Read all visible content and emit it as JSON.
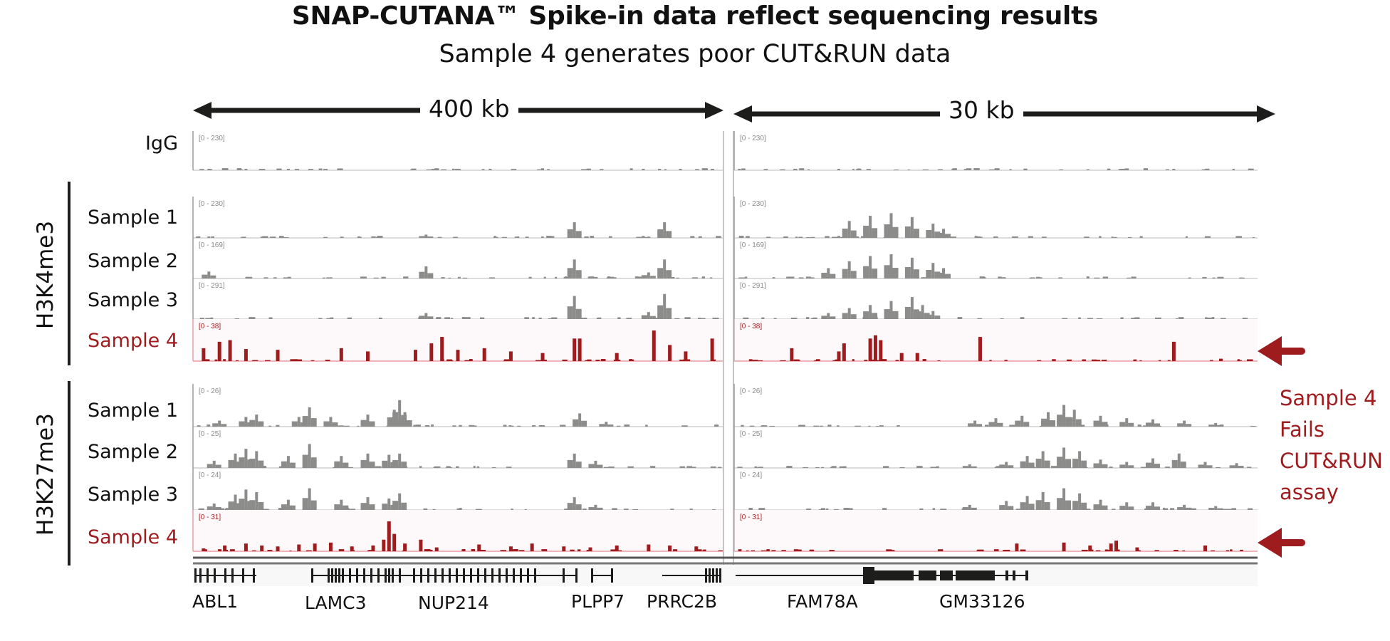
{
  "title": "SNAP-CUTANA™ Spike-in data reflect sequencing results",
  "subtitle": "Sample 4 generates poor CUT&RUN data",
  "colors": {
    "signal_gray": "#8c8c8a",
    "signal_red": "#9e1b1e",
    "text_dark": "#111111",
    "highlight_bg": "#fdf8f9"
  },
  "annotation": {
    "lines": [
      "Sample 4",
      "Fails",
      "CUT&RUN",
      "assay"
    ]
  },
  "chart_data": {
    "type": "bar",
    "title": "SNAP-CUTANA™ Spike-in data reflect sequencing results",
    "subtitle": "Sample 4 generates poor CUT&RUN data",
    "panels": [
      {
        "name": "left",
        "scale_label": "400 kb",
        "genes": [
          "ABL1",
          "LAMC3",
          "NUP214",
          "PLPP7",
          "PRRC2B"
        ]
      },
      {
        "name": "right",
        "scale_label": "30 kb",
        "genes": [
          "FAM78A",
          "GM33126"
        ]
      }
    ],
    "tracks": [
      {
        "group": "",
        "label": "IgG",
        "highlight": false,
        "ranges": [
          "[0 - 230]",
          "[0 - 230]"
        ],
        "max": 230,
        "peaks": [
          [
            [
              0.03,
              3
            ],
            [
              0.1,
              3
            ],
            [
              0.18,
              3
            ],
            [
              0.5,
              3
            ],
            [
              0.85,
              4
            ],
            [
              0.92,
              6
            ],
            [
              0.98,
              8
            ]
          ],
          [
            [
              0.01,
              4
            ],
            [
              0.2,
              4
            ],
            [
              0.84,
              5
            ]
          ]
        ]
      },
      {
        "group": "H3K4me3",
        "label": "Sample 1",
        "highlight": false,
        "ranges": [
          "[0 - 230]",
          "[0 - 230]"
        ],
        "max": 230,
        "peaks": [
          [
            [
              0.03,
              8
            ],
            [
              0.44,
              25
            ],
            [
              0.72,
              120
            ],
            [
              0.85,
              15
            ],
            [
              0.89,
              120
            ]
          ],
          [
            [
              0.1,
              10
            ],
            [
              0.2,
              15
            ],
            [
              0.22,
              130
            ],
            [
              0.26,
              170
            ],
            [
              0.3,
              190
            ],
            [
              0.34,
              160
            ],
            [
              0.38,
              110
            ],
            [
              0.4,
              70
            ]
          ]
        ]
      },
      {
        "group": "H3K4me3",
        "label": "Sample 2",
        "highlight": false,
        "ranges": [
          "[0 - 169]",
          "[0 - 169]"
        ],
        "max": 169,
        "peaks": [
          [
            [
              0.03,
              40
            ],
            [
              0.44,
              70
            ],
            [
              0.72,
              110
            ],
            [
              0.86,
              35
            ],
            [
              0.89,
              110
            ]
          ],
          [
            [
              0.18,
              60
            ],
            [
              0.22,
              100
            ],
            [
              0.26,
              130
            ],
            [
              0.3,
              140
            ],
            [
              0.34,
              120
            ],
            [
              0.38,
              90
            ],
            [
              0.4,
              60
            ]
          ]
        ]
      },
      {
        "group": "H3K4me3",
        "label": "Sample 3",
        "highlight": false,
        "ranges": [
          "[0 - 291]",
          "[0 - 291]"
        ],
        "max": 291,
        "peaks": [
          [
            [
              0.44,
              60
            ],
            [
              0.72,
              230
            ],
            [
              0.86,
              70
            ],
            [
              0.89,
              250
            ]
          ],
          [
            [
              0.18,
              60
            ],
            [
              0.22,
              110
            ],
            [
              0.26,
              140
            ],
            [
              0.3,
              180
            ],
            [
              0.34,
              220
            ],
            [
              0.36,
              140
            ],
            [
              0.38,
              80
            ]
          ]
        ]
      },
      {
        "group": "H3K4me3",
        "label": "Sample 4",
        "highlight": true,
        "ranges": [
          "[0 - 38]",
          "[0 - 38]"
        ],
        "max": 38,
        "peaks": [
          [
            [
              0.02,
              16
            ],
            [
              0.05,
              24
            ],
            [
              0.07,
              26
            ],
            [
              0.1,
              15
            ],
            [
              0.16,
              14
            ],
            [
              0.28,
              16
            ],
            [
              0.33,
              12
            ],
            [
              0.42,
              14
            ],
            [
              0.45,
              22
            ],
            [
              0.47,
              30
            ],
            [
              0.5,
              14
            ],
            [
              0.55,
              16
            ],
            [
              0.6,
              12
            ],
            [
              0.66,
              10
            ],
            [
              0.72,
              28
            ],
            [
              0.73,
              28
            ],
            [
              0.8,
              10
            ],
            [
              0.87,
              38
            ],
            [
              0.9,
              20
            ],
            [
              0.93,
              12
            ],
            [
              0.98,
              28
            ]
          ],
          [
            [
              0.11,
              16
            ],
            [
              0.2,
              12
            ],
            [
              0.21,
              22
            ],
            [
              0.26,
              28
            ],
            [
              0.27,
              32
            ],
            [
              0.28,
              26
            ],
            [
              0.32,
              10
            ],
            [
              0.35,
              10
            ],
            [
              0.47,
              30
            ],
            [
              0.84,
              24
            ],
            [
              0.93,
              3
            ]
          ]
        ]
      },
      {
        "group": "H3K27me3",
        "label": "Sample 1",
        "highlight": false,
        "ranges": [
          "[0 - 26]",
          "[0 - 26]"
        ],
        "max": 26,
        "peaks": [
          [
            [
              0.05,
              5
            ],
            [
              0.1,
              8
            ],
            [
              0.12,
              10
            ],
            [
              0.2,
              8
            ],
            [
              0.22,
              16
            ],
            [
              0.26,
              8
            ],
            [
              0.33,
              10
            ],
            [
              0.38,
              14
            ],
            [
              0.39,
              22
            ],
            [
              0.4,
              12
            ],
            [
              0.73,
              11
            ],
            [
              0.78,
              4
            ]
          ],
          [
            [
              0.46,
              5
            ],
            [
              0.5,
              7
            ],
            [
              0.55,
              9
            ],
            [
              0.6,
              12
            ],
            [
              0.63,
              18
            ],
            [
              0.65,
              14
            ],
            [
              0.7,
              9
            ],
            [
              0.75,
              7
            ],
            [
              0.8,
              6
            ],
            [
              0.86,
              5
            ],
            [
              0.92,
              3
            ]
          ]
        ]
      },
      {
        "group": "H3K27me3",
        "label": "Sample 2",
        "highlight": false,
        "ranges": [
          "[0 - 25]",
          "[0 - 25]"
        ],
        "max": 25,
        "peaks": [
          [
            [
              0.04,
              6
            ],
            [
              0.08,
              12
            ],
            [
              0.1,
              16
            ],
            [
              0.12,
              14
            ],
            [
              0.18,
              10
            ],
            [
              0.22,
              20
            ],
            [
              0.28,
              10
            ],
            [
              0.33,
              12
            ],
            [
              0.37,
              11
            ],
            [
              0.39,
              12
            ],
            [
              0.72,
              12
            ],
            [
              0.76,
              6
            ]
          ],
          [
            [
              0.45,
              3
            ],
            [
              0.52,
              5
            ],
            [
              0.56,
              10
            ],
            [
              0.59,
              14
            ],
            [
              0.63,
              17
            ],
            [
              0.66,
              14
            ],
            [
              0.7,
              7
            ],
            [
              0.75,
              5
            ],
            [
              0.8,
              8
            ],
            [
              0.85,
              12
            ],
            [
              0.9,
              5
            ],
            [
              0.96,
              4
            ]
          ]
        ]
      },
      {
        "group": "H3K27me3",
        "label": "Sample 3",
        "highlight": false,
        "ranges": [
          "[0 - 24]",
          "[0 - 24]"
        ],
        "max": 24,
        "peaks": [
          [
            [
              0.04,
              5
            ],
            [
              0.08,
              12
            ],
            [
              0.1,
              16
            ],
            [
              0.12,
              14
            ],
            [
              0.18,
              8
            ],
            [
              0.22,
              17
            ],
            [
              0.28,
              8
            ],
            [
              0.33,
              10
            ],
            [
              0.37,
              9
            ],
            [
              0.39,
              13
            ],
            [
              0.72,
              10
            ],
            [
              0.76,
              4
            ]
          ],
          [
            [
              0.45,
              4
            ],
            [
              0.52,
              7
            ],
            [
              0.56,
              11
            ],
            [
              0.59,
              14
            ],
            [
              0.63,
              17
            ],
            [
              0.66,
              13
            ],
            [
              0.7,
              8
            ],
            [
              0.75,
              6
            ],
            [
              0.8,
              6
            ],
            [
              0.86,
              4
            ],
            [
              0.92,
              3
            ]
          ]
        ]
      },
      {
        "group": "H3K27me3",
        "label": "Sample 4",
        "highlight": true,
        "ranges": [
          "[0 - 31]",
          "[0 - 31]"
        ],
        "max": 31,
        "peaks": [
          [
            [
              0.02,
              3
            ],
            [
              0.06,
              6
            ],
            [
              0.1,
              8
            ],
            [
              0.13,
              6
            ],
            [
              0.16,
              5
            ],
            [
              0.2,
              7
            ],
            [
              0.23,
              8
            ],
            [
              0.26,
              9
            ],
            [
              0.3,
              5
            ],
            [
              0.34,
              6
            ],
            [
              0.36,
              12
            ],
            [
              0.37,
              31
            ],
            [
              0.38,
              18
            ],
            [
              0.4,
              8
            ],
            [
              0.43,
              12
            ],
            [
              0.46,
              4
            ],
            [
              0.54,
              7
            ],
            [
              0.6,
              5
            ],
            [
              0.64,
              8
            ],
            [
              0.7,
              5
            ],
            [
              0.75,
              4
            ],
            [
              0.8,
              6
            ],
            [
              0.86,
              7
            ],
            [
              0.9,
              6
            ],
            [
              0.95,
              5
            ]
          ],
          [
            [
              0.54,
              8
            ],
            [
              0.63,
              9
            ],
            [
              0.68,
              6
            ],
            [
              0.72,
              8
            ],
            [
              0.73,
              11
            ],
            [
              0.77,
              4
            ],
            [
              0.9,
              6
            ]
          ]
        ]
      }
    ]
  }
}
